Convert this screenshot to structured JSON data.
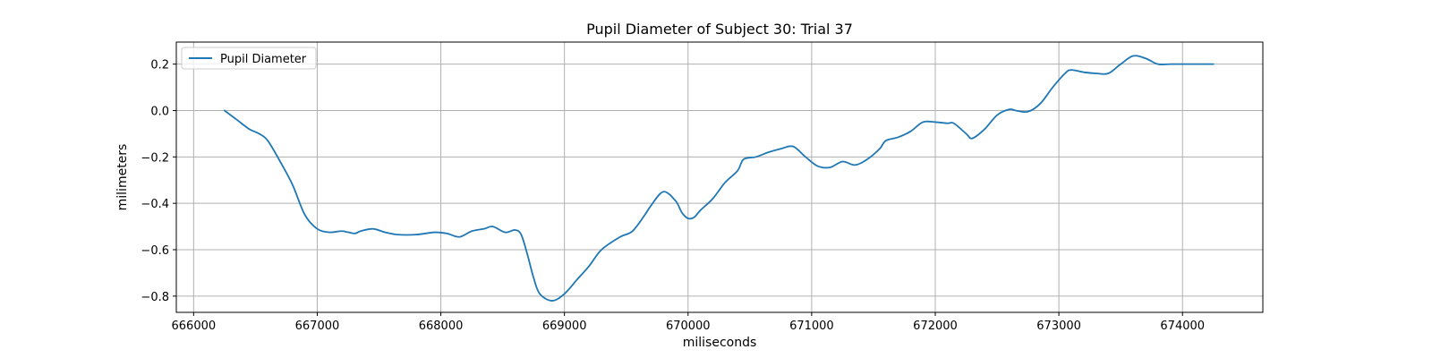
{
  "chart_data": {
    "type": "line",
    "title": "Pupil Diameter of Subject 30: Trial 37",
    "xlabel": "miliseconds",
    "ylabel": "milimeters",
    "xlim": [
      665860,
      674650
    ],
    "ylim": [
      -0.87,
      0.295
    ],
    "xticks": [
      666000,
      667000,
      668000,
      669000,
      670000,
      671000,
      672000,
      673000,
      674000
    ],
    "yticks": [
      -0.8,
      -0.6,
      -0.4,
      -0.2,
      0.0,
      0.2
    ],
    "ytick_labels": [
      "−0.8",
      "−0.6",
      "−0.4",
      "−0.2",
      "0.0",
      "0.2"
    ],
    "grid": true,
    "legend_position": "top-left",
    "series": [
      {
        "name": "Pupil Diameter",
        "color": "#1f77b4",
        "x": [
          666250,
          666350,
          666450,
          666530,
          666600,
          666700,
          666800,
          666900,
          667000,
          667100,
          667200,
          667300,
          667350,
          667450,
          667550,
          667650,
          667800,
          667950,
          668050,
          668150,
          668250,
          668350,
          668420,
          668520,
          668600,
          668650,
          668700,
          668750,
          668800,
          668900,
          669000,
          669100,
          669200,
          669300,
          669450,
          669550,
          669650,
          669700,
          669800,
          669900,
          669950,
          670000,
          670050,
          670100,
          670200,
          670300,
          670400,
          670450,
          670550,
          670650,
          670750,
          670850,
          670950,
          671050,
          671150,
          671250,
          671350,
          671450,
          671550,
          671600,
          671700,
          671800,
          671900,
          672000,
          672100,
          672150,
          672250,
          672300,
          672400,
          672500,
          672600,
          672650,
          672750,
          672850,
          672950,
          673050,
          673100,
          673200,
          673300,
          673400,
          673500,
          673600,
          673700,
          673800,
          673900,
          674000,
          674100,
          674150,
          674250
        ],
        "y": [
          0.0,
          -0.04,
          -0.08,
          -0.1,
          -0.13,
          -0.22,
          -0.32,
          -0.45,
          -0.51,
          -0.525,
          -0.52,
          -0.53,
          -0.52,
          -0.51,
          -0.525,
          -0.535,
          -0.535,
          -0.525,
          -0.53,
          -0.545,
          -0.52,
          -0.51,
          -0.5,
          -0.525,
          -0.515,
          -0.535,
          -0.62,
          -0.72,
          -0.79,
          -0.82,
          -0.79,
          -0.73,
          -0.67,
          -0.6,
          -0.545,
          -0.52,
          -0.45,
          -0.41,
          -0.35,
          -0.39,
          -0.44,
          -0.465,
          -0.46,
          -0.43,
          -0.38,
          -0.31,
          -0.26,
          -0.21,
          -0.2,
          -0.18,
          -0.165,
          -0.155,
          -0.2,
          -0.24,
          -0.245,
          -0.22,
          -0.235,
          -0.21,
          -0.165,
          -0.13,
          -0.115,
          -0.09,
          -0.05,
          -0.05,
          -0.055,
          -0.055,
          -0.1,
          -0.12,
          -0.08,
          -0.02,
          0.005,
          0.0,
          -0.005,
          0.03,
          0.1,
          0.16,
          0.175,
          0.165,
          0.16,
          0.16,
          0.2,
          0.235,
          0.225,
          0.2,
          0.2,
          0.2,
          0.2,
          0.2,
          0.2
        ]
      }
    ]
  }
}
